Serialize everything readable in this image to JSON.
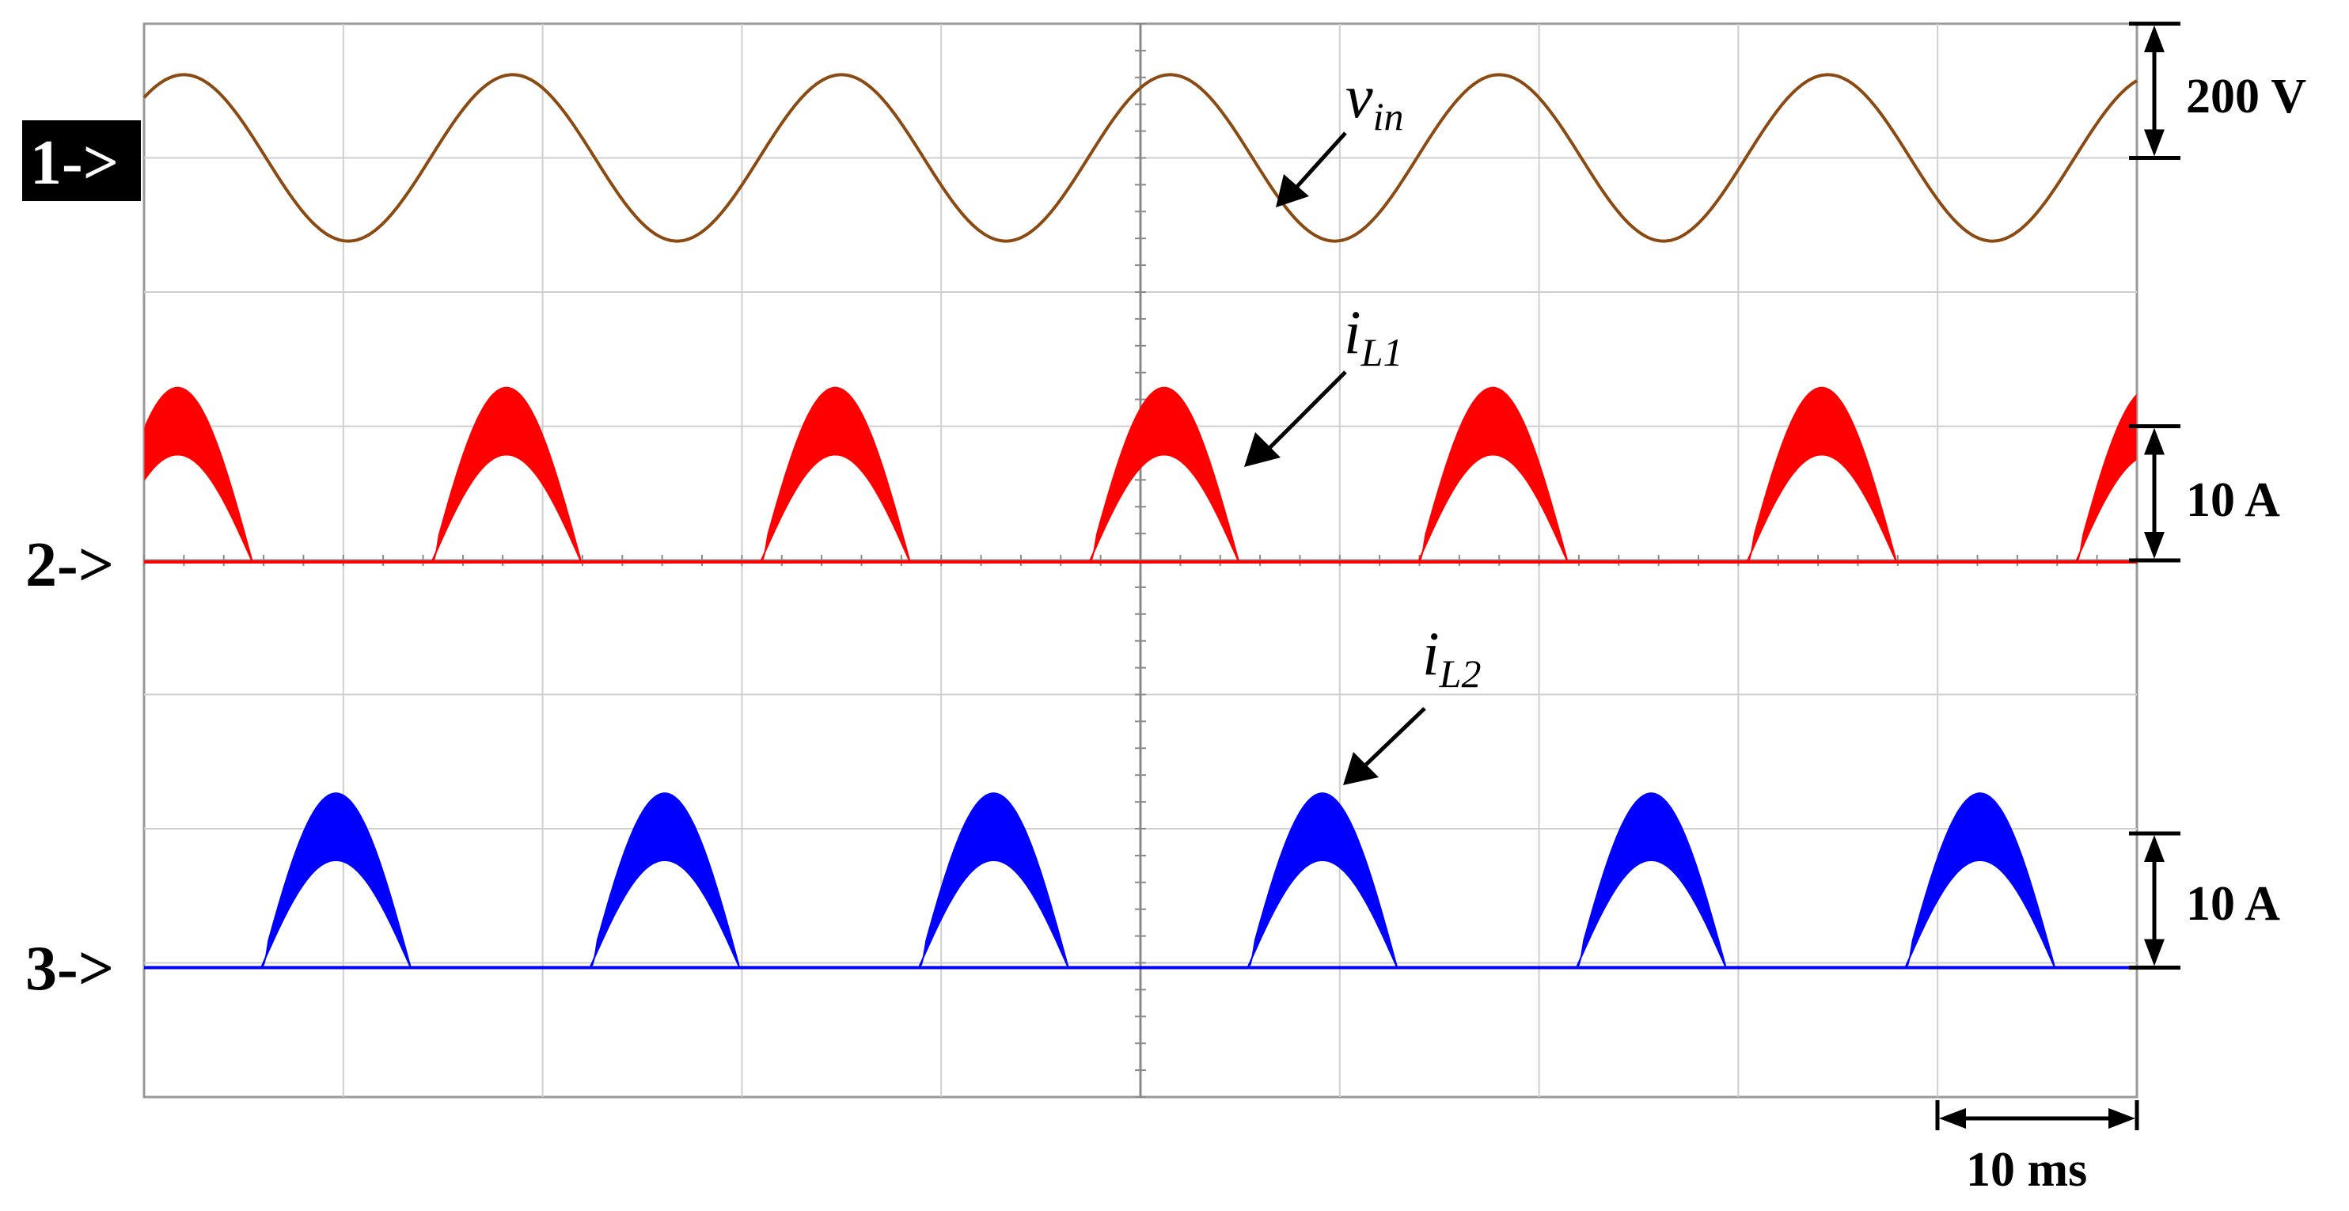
{
  "chart_data": {
    "type": "line",
    "channels": [
      {
        "marker": "1->",
        "name": "v",
        "subscript": "in",
        "color": "#8B4A12",
        "scale_label": "200 V",
        "shape": "sine",
        "volts_per_div": 200,
        "amplitude_div": 0.62,
        "period_ms": 16.5
      },
      {
        "marker": "2->",
        "name": "i",
        "subscript": "L1",
        "color": "#FF0000",
        "scale_label": "10 A",
        "shape": "rectified-half-sine with switching ripple",
        "amps_per_div": 10,
        "upper_peak_div": 1.3,
        "lower_peak_div": 0.8,
        "conduction_ms": 7.5,
        "period_ms": 16.5
      },
      {
        "marker": "3->",
        "name": "i",
        "subscript": "L2",
        "color": "#0000FF",
        "scale_label": "10 A",
        "shape": "rectified-half-sine with switching ripple",
        "amps_per_div": 10,
        "upper_peak_div": 1.3,
        "lower_peak_div": 0.8,
        "conduction_ms": 7.5,
        "period_ms": 16.5
      }
    ],
    "time_scale_label": "10 ms",
    "ms_per_div": 10,
    "grid": true,
    "grid_divisions": {
      "x": 10,
      "y": 8
    }
  }
}
